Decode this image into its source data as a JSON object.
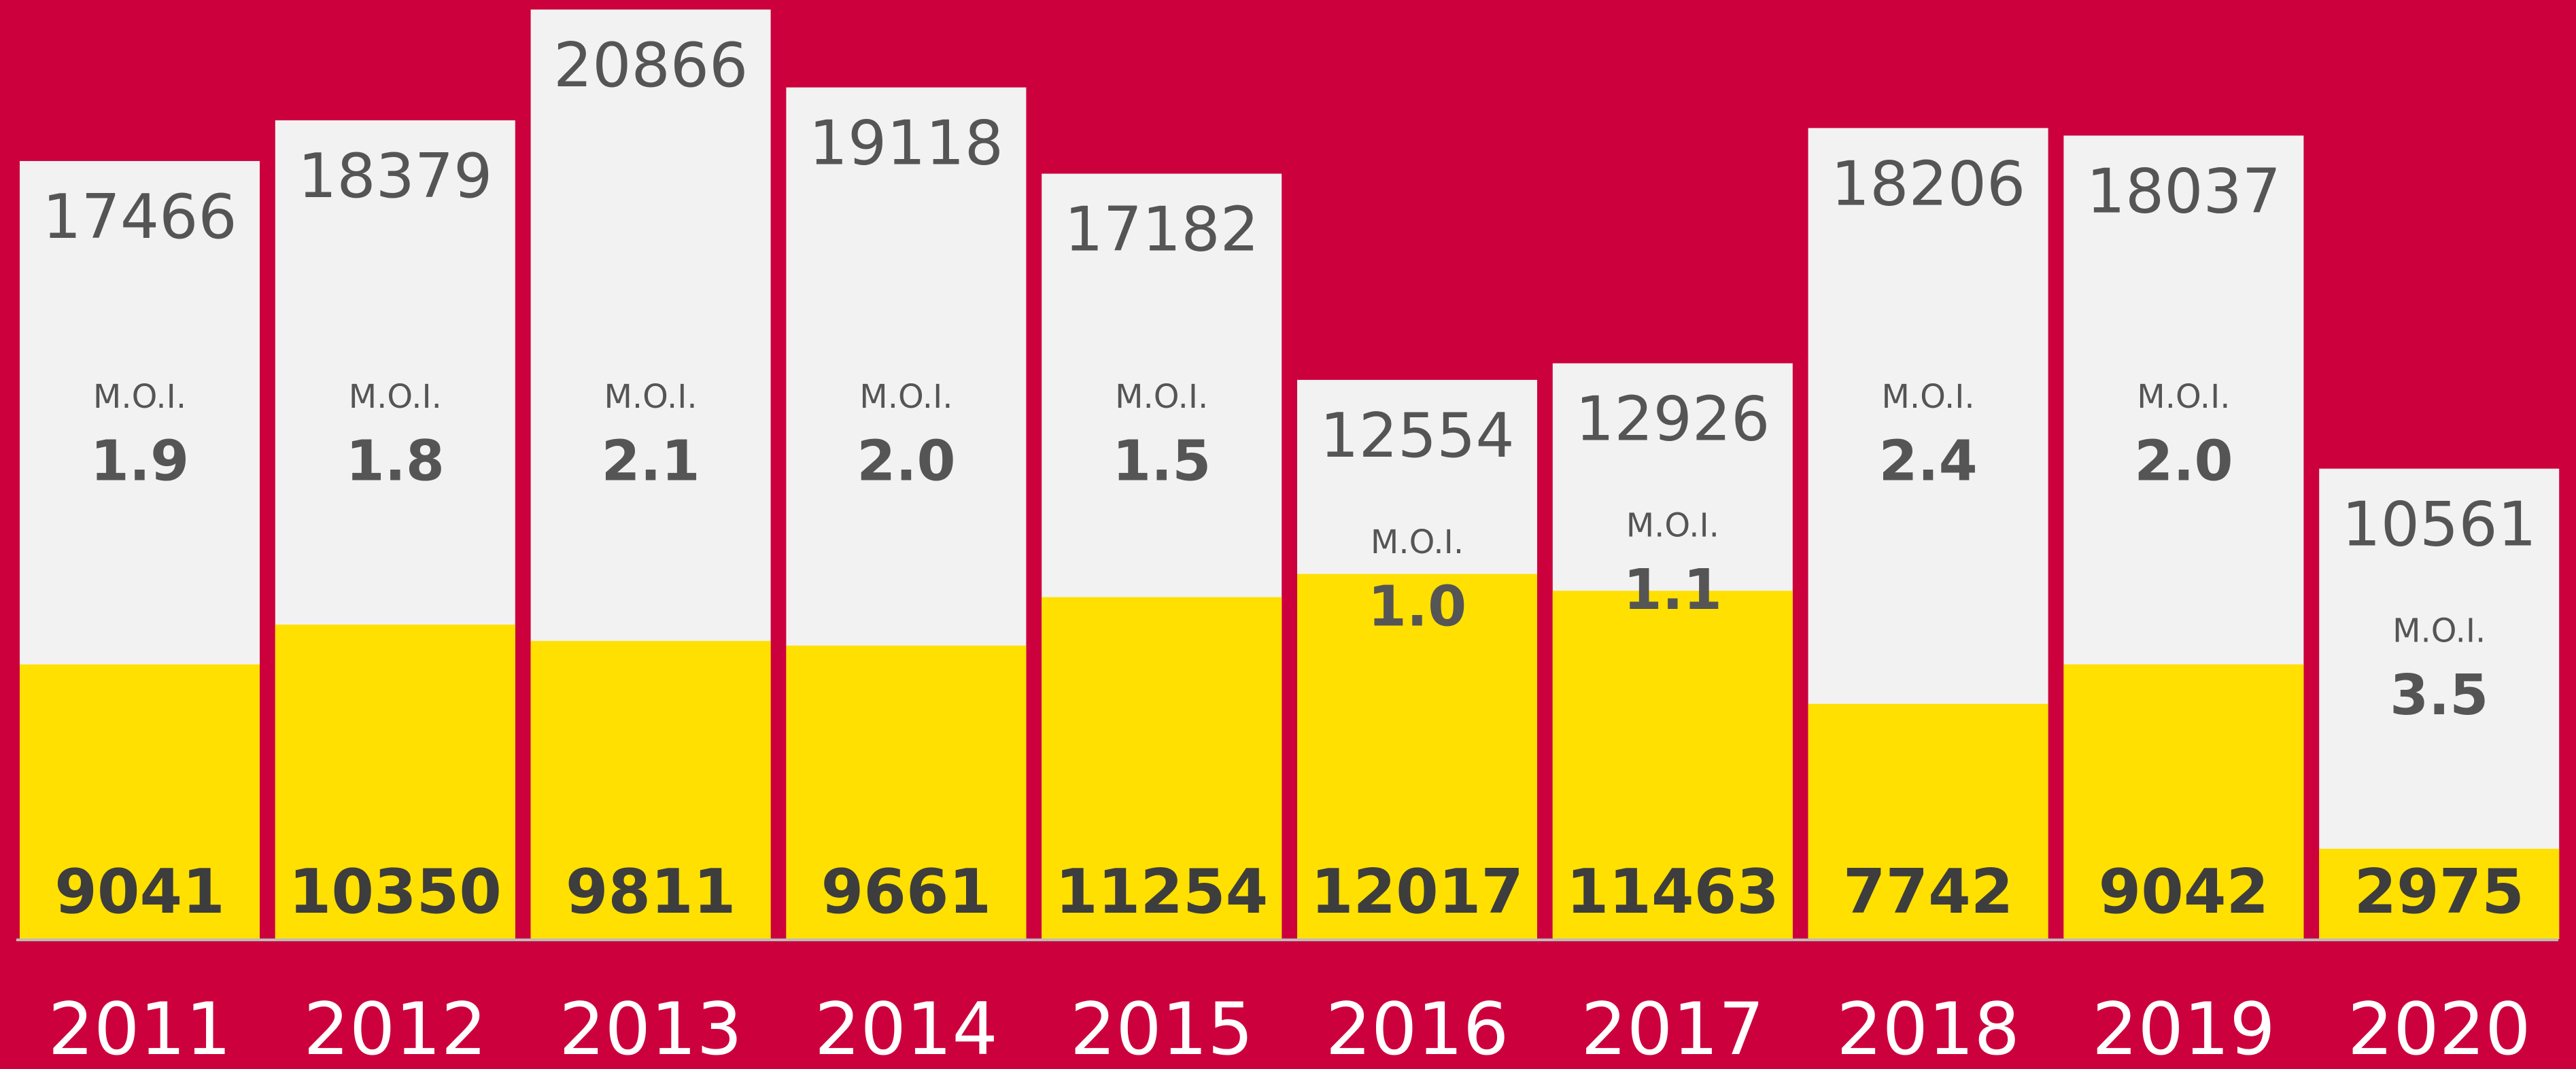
{
  "chart_data": {
    "type": "bar",
    "categories": [
      "2011",
      "2012",
      "2013",
      "2014",
      "2015",
      "2016",
      "2017",
      "2018",
      "2019",
      "2020"
    ],
    "series": [
      {
        "color": "#f2f2f2",
        "values": [
          17466,
          18379,
          20866,
          19118,
          17182,
          12554,
          12926,
          18206,
          18037,
          10561
        ]
      },
      {
        "color": "#ffe000",
        "axis": "y2",
        "values": [
          9041,
          10350,
          9811,
          9661,
          11254,
          12017,
          11463,
          7742,
          9042,
          2975
        ]
      }
    ],
    "moi": {
      "label": "M.O.I.",
      "values": [
        1.9,
        1.8,
        2.1,
        2,
        1.5,
        1,
        1.1,
        2.4,
        2,
        3.5
      ],
      "value_labels": [
        "1.9",
        "1.8",
        "2.1",
        "2.0",
        "1.5",
        "1.0",
        "1.1",
        "2.4",
        "2.0",
        "3.5"
      ]
    },
    "ylim": [
      0,
      21080
    ],
    "y2lim": [
      0,
      30900
    ],
    "background": "#cc003d"
  }
}
